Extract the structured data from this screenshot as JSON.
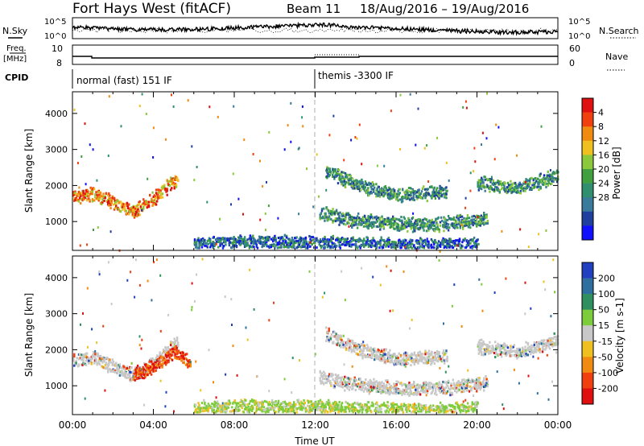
{
  "header": {
    "title": "Fort Hays West (fitACF)",
    "beam": "Beam 11",
    "date_range": "18/Aug/2016 – 19/Aug/2016"
  },
  "strips": {
    "nsky_label": "N.Sky",
    "nsearch_label": "N.Search",
    "nsky_ticks": [
      "10^5",
      "10^0"
    ],
    "nsearch_ticks": [
      "10^5",
      "10^0"
    ],
    "freq_label_1": "Freq.",
    "freq_label_2": "[MHz]",
    "freq_ticks": [
      "10",
      "8"
    ],
    "nave_label": "Nave",
    "nave_ticks": [
      "60",
      "0"
    ],
    "cpid_label": "CPID",
    "cpid_mode_1": "normal (fast) 151 IF",
    "cpid_mode_2": "themis -3300 IF"
  },
  "chart_data": [
    {
      "type": "heatmap",
      "name": "power-panel",
      "xlabel": "",
      "ylabel": "Slant Range [km]",
      "xlim": [
        0,
        24
      ],
      "ylim": [
        200,
        4600
      ],
      "yticks": [
        "1000",
        "2000",
        "3000",
        "4000"
      ],
      "colorbar": {
        "label": "Power [dB]",
        "ticks": [
          "4",
          "8",
          "12",
          "16",
          "20",
          "24",
          "28"
        ],
        "colors": [
          "#1010ff",
          "#2040a0",
          "#3a7a9a",
          "#2f8f6f",
          "#40a040",
          "#8cc83c",
          "#f0c020",
          "#f08a10",
          "#f04010",
          "#e01010"
        ]
      },
      "bands": [
        {
          "t": [
            0.0,
            1.0,
            2.0,
            3.0,
            4.0,
            5.2
          ],
          "r": [
            1650,
            1750,
            1500,
            1250,
            1600,
            2200
          ],
          "dominant": "high"
        },
        {
          "t": [
            6.0,
            9.0,
            12.0,
            15.0,
            18.0,
            20.0
          ],
          "r": [
            350,
            400,
            380,
            330,
            300,
            320
          ],
          "dominant": "low"
        },
        {
          "t": [
            12.2,
            14.0,
            16.0,
            18.0,
            20.5
          ],
          "r": [
            1200,
            1000,
            900,
            900,
            1050
          ],
          "dominant": "mid"
        },
        {
          "t": [
            12.5,
            14.0,
            16.0,
            18.5
          ],
          "r": [
            2400,
            2000,
            1700,
            1800
          ],
          "dominant": "mid"
        },
        {
          "t": [
            20.0,
            22.0,
            24.0
          ],
          "r": [
            2050,
            1900,
            2250
          ],
          "dominant": "mid"
        }
      ]
    },
    {
      "type": "heatmap",
      "name": "velocity-panel",
      "xlabel": "Time UT",
      "ylabel": "Slant Range [km]",
      "xlim": [
        0,
        24
      ],
      "ylim": [
        200,
        4600
      ],
      "xticks": [
        "00:00",
        "04:00",
        "08:00",
        "12:00",
        "16:00",
        "20:00",
        "00:00"
      ],
      "yticks": [
        "1000",
        "2000",
        "3000",
        "4000"
      ],
      "colorbar": {
        "label": "Velocity [m s-1]",
        "ticks": [
          "200",
          "100",
          "50",
          "15",
          "-15",
          "-50",
          "-100",
          "-200"
        ],
        "colors": [
          "#2040c0",
          "#2f6fa0",
          "#2f8f5f",
          "#7ccc3c",
          "#c8c8c8",
          "#f0c020",
          "#f08a10",
          "#f04010",
          "#e01010"
        ]
      },
      "bands": [
        {
          "t": [
            0.0,
            1.0,
            2.0,
            3.0,
            4.0,
            5.2
          ],
          "r": [
            1650,
            1750,
            1500,
            1250,
            1600,
            2200
          ],
          "dominant": "grey"
        },
        {
          "t": [
            3.0,
            4.0,
            5.0,
            5.8
          ],
          "r": [
            1300,
            1500,
            1900,
            1600
          ],
          "dominant": "neg"
        },
        {
          "t": [
            6.0,
            9.0,
            12.0,
            15.0,
            18.0,
            20.0
          ],
          "r": [
            350,
            400,
            380,
            330,
            300,
            320
          ],
          "dominant": "pos"
        },
        {
          "t": [
            12.2,
            14.0,
            16.0,
            18.0,
            20.5
          ],
          "r": [
            1200,
            1000,
            900,
            900,
            1050
          ],
          "dominant": "grey"
        },
        {
          "t": [
            12.5,
            14.0,
            16.0,
            18.5
          ],
          "r": [
            2400,
            2000,
            1700,
            1800
          ],
          "dominant": "grey"
        },
        {
          "t": [
            20.0,
            22.0,
            24.0
          ],
          "r": [
            2050,
            1900,
            2250
          ],
          "dominant": "grey"
        }
      ]
    }
  ]
}
